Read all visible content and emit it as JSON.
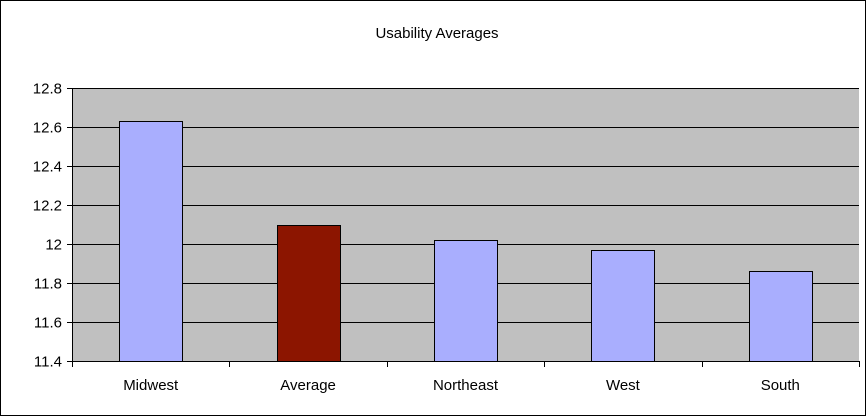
{
  "chart_data": {
    "type": "bar",
    "title": "Usability Averages",
    "xlabel": "",
    "ylabel": "",
    "categories": [
      "Midwest",
      "Average",
      "Northeast",
      "West",
      "South"
    ],
    "values": [
      12.63,
      12.1,
      12.02,
      11.97,
      11.86
    ],
    "ylim": [
      11.4,
      12.8
    ],
    "yticks": [
      "11.4",
      "11.6",
      "11.8",
      "12",
      "12.2",
      "12.4",
      "12.6",
      "12.8"
    ],
    "ytick_values": [
      11.4,
      11.6,
      11.8,
      12.0,
      12.2,
      12.4,
      12.6,
      12.8
    ],
    "grid": true,
    "legend": "none",
    "colors": {
      "plot_background": "#c0c0c0",
      "bar_default": "#a9aefe",
      "bar_highlight": "#8c1500",
      "highlight_category": "Average",
      "gridline": "#000000",
      "bar_border": "#000000"
    }
  }
}
